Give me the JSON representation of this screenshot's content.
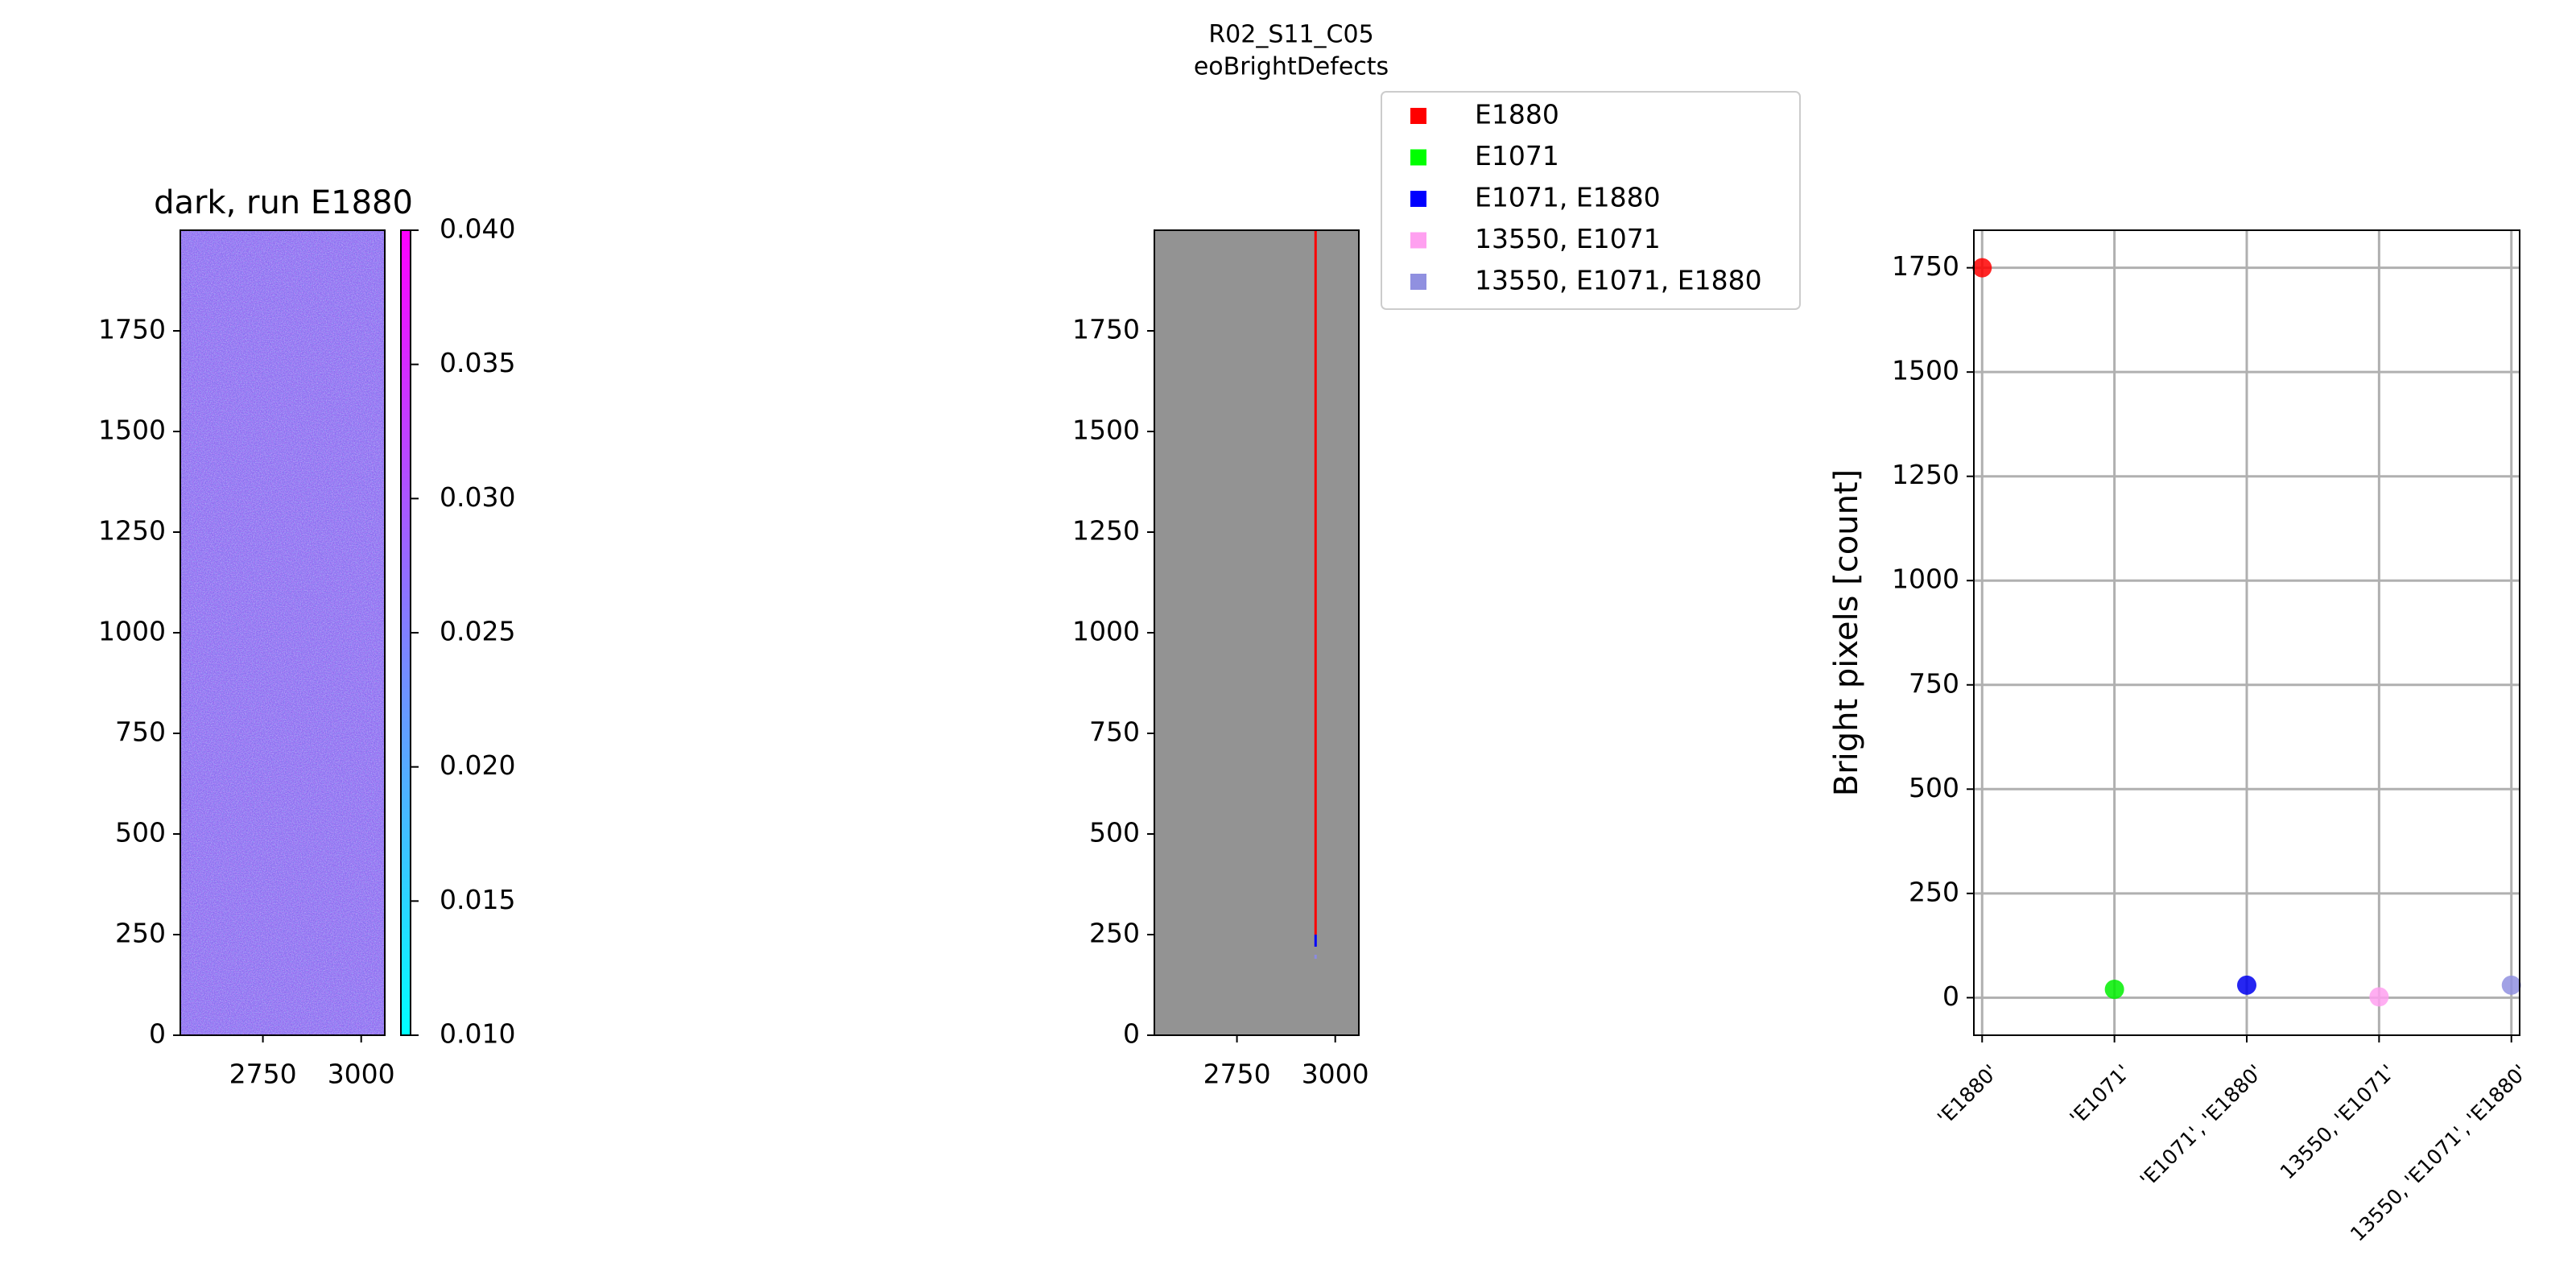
{
  "suptitle": [
    "R02_S11_C05",
    "eoBrightDefects"
  ],
  "chart_data": [
    {
      "type": "heatmap",
      "title": "dark, run E1880",
      "xlim": [
        2540,
        3060
      ],
      "ylim": [
        0,
        2000
      ],
      "xticks": [
        2750,
        3000
      ],
      "yticks": [
        0,
        250,
        500,
        750,
        1000,
        1250,
        1500,
        1750
      ],
      "colormap": "cool",
      "colorbar": {
        "range": [
          0.01,
          0.04
        ],
        "ticks": [
          "0.010",
          "0.015",
          "0.020",
          "0.025",
          "0.030",
          "0.035",
          "0.040"
        ],
        "tick_values": [
          0.01,
          0.015,
          0.02,
          0.025,
          0.03,
          0.035,
          0.04
        ]
      }
    },
    {
      "type": "heatmap",
      "title": "",
      "xlim": [
        2540,
        3060
      ],
      "ylim": [
        0,
        2000
      ],
      "xticks": [
        2750,
        3000
      ],
      "yticks": [
        0,
        250,
        500,
        750,
        1000,
        1250,
        1500,
        1750
      ],
      "background_color": "#939393",
      "defects": [
        {
          "run": "E1880",
          "x": 2950,
          "y_from": 250,
          "y_to": 2000,
          "color": "#ff0000"
        },
        {
          "run": "E1071, E1880",
          "x": 2950,
          "y_from": 220,
          "y_to": 250,
          "color": "#0000ff"
        },
        {
          "run": "13550, E1071, E1880",
          "x": 2950,
          "y_from": 190,
          "y_to": 200,
          "color": "#8b8be0"
        }
      ],
      "legend": {
        "placement": "upper-right, outside",
        "entries": [
          {
            "label": "E1880",
            "color": "#ff0000"
          },
          {
            "label": "E1071",
            "color": "#00ff00"
          },
          {
            "label": "E1071, E1880",
            "color": "#0000ff"
          },
          {
            "label": "13550, E1071",
            "color": "#ffa0f0"
          },
          {
            "label": "13550, E1071, E1880",
            "color": "#9090e0"
          }
        ]
      }
    },
    {
      "type": "scatter",
      "title": "",
      "xlabel": "",
      "ylabel": "Bright pixels [count]",
      "grid": true,
      "ylim": [
        -90,
        1840
      ],
      "yticks": [
        0,
        250,
        500,
        750,
        1000,
        1250,
        1500,
        1750
      ],
      "categories": [
        "'E1880'",
        "'E1071'",
        "'E1071', 'E1880'",
        "13550, 'E1071'",
        "13550, 'E1071', 'E1880'"
      ],
      "values": [
        1750,
        20,
        30,
        2,
        30
      ],
      "colors": [
        "#ff0000",
        "#00ee00",
        "#0000ee",
        "#ffa0f0",
        "#9090e0"
      ]
    }
  ]
}
